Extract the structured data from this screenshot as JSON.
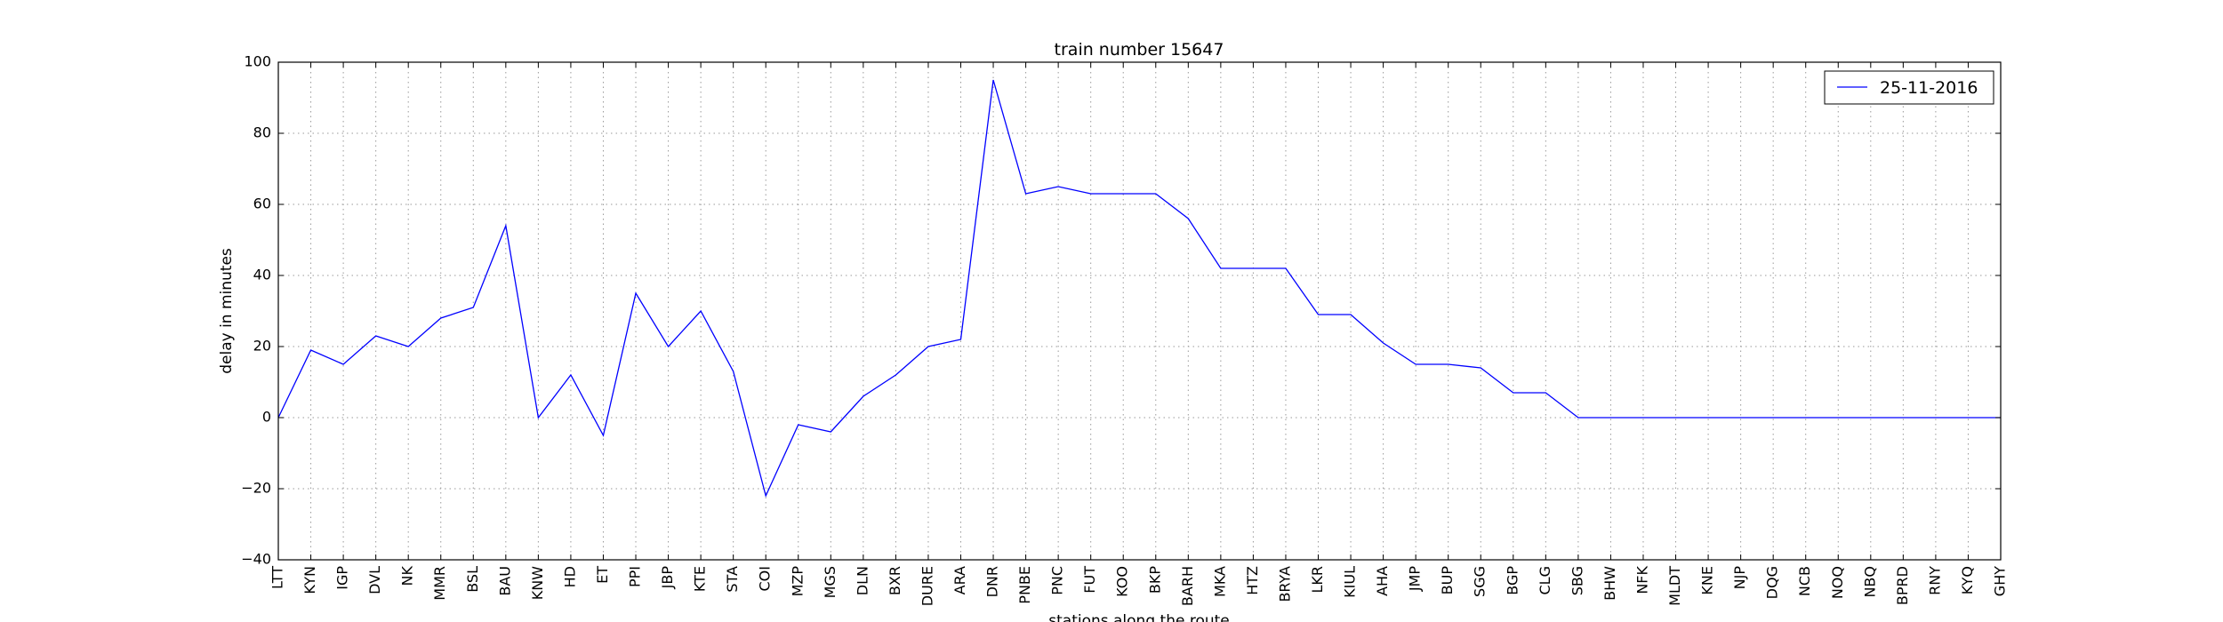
{
  "chart_data": {
    "type": "line",
    "title": "train number 15647",
    "xlabel": "stations along the route",
    "ylabel": "delay in minutes",
    "ylim": [
      -40,
      100
    ],
    "yticks": [
      -40,
      -20,
      0,
      20,
      40,
      60,
      80,
      100
    ],
    "grid": true,
    "legend_position": "top-right",
    "categories": [
      "LTT",
      "KYN",
      "IGP",
      "DVL",
      "NK",
      "MMR",
      "BSL",
      "BAU",
      "KNW",
      "HD",
      "ET",
      "PPI",
      "JBP",
      "KTE",
      "STA",
      "COI",
      "MZP",
      "MGS",
      "DLN",
      "BXR",
      "DURE",
      "ARA",
      "DNR",
      "PNBE",
      "PNC",
      "FUT",
      "KOO",
      "BKP",
      "BARH",
      "MKA",
      "HTZ",
      "BRYA",
      "LKR",
      "KIUL",
      "AHA",
      "JMP",
      "BUP",
      "SGG",
      "BGP",
      "CLG",
      "SBG",
      "BHW",
      "NFK",
      "MLDT",
      "KNE",
      "NJP",
      "DQG",
      "NCB",
      "NOQ",
      "NBQ",
      "BPRD",
      "RNY",
      "KYQ",
      "GHY"
    ],
    "series": [
      {
        "name": "25-11-2016",
        "color": "#0000ff",
        "values": [
          0,
          19,
          15,
          23,
          20,
          28,
          31,
          54,
          0,
          12,
          -5,
          35,
          20,
          30,
          13,
          -22,
          -2,
          -4,
          6,
          12,
          20,
          22,
          95,
          63,
          65,
          63,
          63,
          63,
          56,
          42,
          42,
          42,
          29,
          29,
          21,
          15,
          15,
          14,
          7,
          7,
          0,
          0,
          0,
          0,
          0,
          0,
          0,
          0,
          0,
          0,
          0,
          0,
          0,
          0
        ]
      }
    ]
  }
}
